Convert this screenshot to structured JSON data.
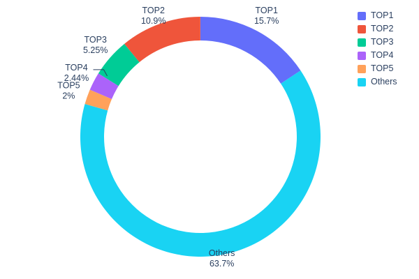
{
  "chart_data": {
    "type": "pie",
    "subtype": "donut",
    "hole": 0.8,
    "title": "",
    "labels": [
      "TOP1",
      "TOP2",
      "TOP3",
      "TOP4",
      "TOP5",
      "Others"
    ],
    "values": [
      15.7,
      10.9,
      5.25,
      2.44,
      2.0,
      63.7
    ],
    "display_percents": [
      "15.7%",
      "10.9%",
      "5.25%",
      "2.44%",
      "2%",
      "63.7%"
    ],
    "colors": [
      "#636efa",
      "#ef553b",
      "#00cc96",
      "#ab63fa",
      "#ffa15a",
      "#19d3f3"
    ],
    "slice_order_clockwise_from_top": [
      "TOP1",
      "Others",
      "TOP5",
      "TOP4",
      "TOP3",
      "TOP2"
    ],
    "leader_line_slices": [
      "TOP4"
    ],
    "label_position": "outside",
    "legend": {
      "position": "right",
      "entries": [
        "TOP1",
        "TOP2",
        "TOP3",
        "TOP4",
        "TOP5",
        "Others"
      ]
    },
    "text_color": "#2a3f5f",
    "background": "#ffffff"
  }
}
